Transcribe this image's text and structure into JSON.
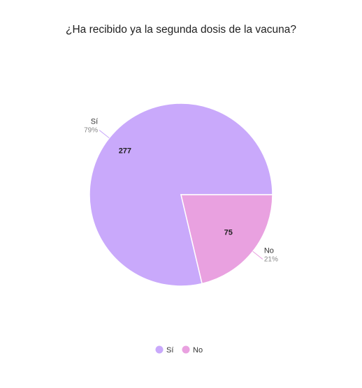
{
  "chart_data": {
    "type": "pie",
    "title": "¿Ha recibido ya la segunda dosis de la vacuna?",
    "categories": [
      "Sí",
      "No"
    ],
    "values": [
      277,
      75
    ],
    "percent_labels": [
      "79%",
      "21%"
    ],
    "colors": [
      "#c9a9fb",
      "#e9a1e0"
    ],
    "legend": {
      "placement": "bottom-center",
      "entries": [
        "Sí",
        "No"
      ]
    }
  }
}
